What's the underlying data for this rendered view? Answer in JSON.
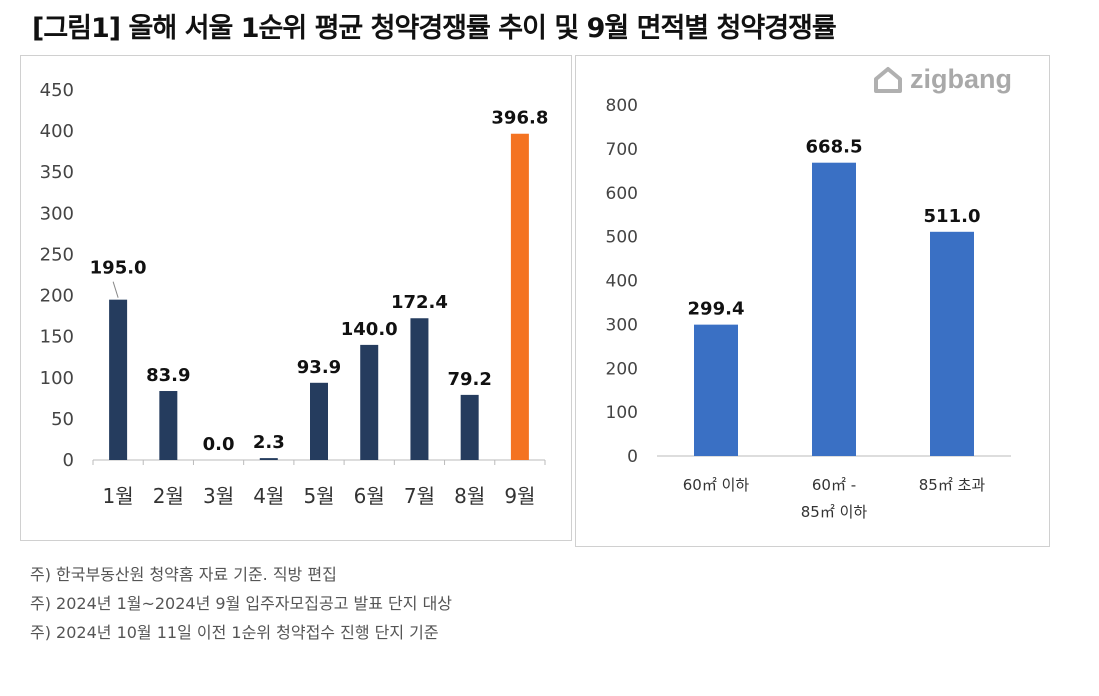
{
  "title": "[그림1] 올해 서울 1순위 평균 청약경쟁률 추이 및 9월 면적별 청약경쟁률",
  "logo": {
    "text": "zigbang",
    "icon": "zigbang-house-icon"
  },
  "colors": {
    "navy": "#253c5e",
    "highlight": "#f47321",
    "blue": "#3a70c4"
  },
  "chart_data": [
    {
      "type": "bar",
      "categories": [
        "1월",
        "2월",
        "3월",
        "4월",
        "5월",
        "6월",
        "7월",
        "8월",
        "9월"
      ],
      "values": [
        195.0,
        83.9,
        0.0,
        2.3,
        93.9,
        140.0,
        172.4,
        79.2,
        396.8
      ],
      "labels": [
        "195.0",
        "83.9",
        "0.0",
        "2.3",
        "93.9",
        "140.0",
        "172.4",
        "79.2",
        "396.8"
      ],
      "highlight_index": 8,
      "ylim": [
        0,
        450
      ],
      "yticks": [
        0,
        50,
        100,
        150,
        200,
        250,
        300,
        350,
        400,
        450
      ],
      "grid": false
    },
    {
      "type": "bar",
      "categories": [
        [
          "60㎡ 이하"
        ],
        [
          "60㎡ -",
          "85㎡ 이하"
        ],
        [
          "85㎡ 초과"
        ]
      ],
      "values": [
        299.4,
        668.5,
        511.0
      ],
      "labels": [
        "299.4",
        "668.5",
        "511.0"
      ],
      "ylim": [
        0,
        800
      ],
      "yticks": [
        0,
        100,
        200,
        300,
        400,
        500,
        600,
        700,
        800
      ],
      "grid": false
    }
  ],
  "notes": [
    "주) 한국부동산원 청약홈 자료 기준. 직방 편집",
    "주) 2024년 1월~2024년 9월 입주자모집공고 발표 단지 대상",
    "주) 2024년 10월 11일 이전 1순위 청약접수 진행 단지 기준"
  ]
}
